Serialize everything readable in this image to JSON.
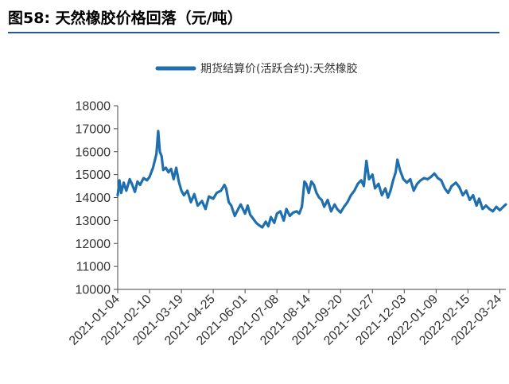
{
  "figure": {
    "title": "图58: 天然橡胶价格回落（元/吨）"
  },
  "colors": {
    "series": "#1f6fae",
    "title_rule": "#1f5a96",
    "axis": "#444444"
  },
  "chart_data": {
    "type": "line",
    "legend_position": "top-center",
    "grid": false,
    "ylim": [
      10000,
      18000
    ],
    "yticks": [
      "18000",
      "17000",
      "16000",
      "15000",
      "14000",
      "13000",
      "12000",
      "11000",
      "10000"
    ],
    "xrange": [
      "2021-01-04",
      "2022-03-31"
    ],
    "xticks": [
      "2021-01-04",
      "2021-02-10",
      "2021-03-19",
      "2021-04-25",
      "2021-06-01",
      "2021-07-08",
      "2021-08-14",
      "2021-09-20",
      "2021-10-27",
      "2021-12-03",
      "2022-01-09",
      "2022-02-15",
      "2022-03-24"
    ],
    "series": [
      {
        "name": "期货结算价(活跃合约):天然橡胶",
        "points": [
          [
            "2021-01-04",
            14100
          ],
          [
            "2021-01-06",
            14750
          ],
          [
            "2021-01-08",
            14200
          ],
          [
            "2021-01-11",
            14650
          ],
          [
            "2021-01-14",
            14300
          ],
          [
            "2021-01-18",
            14800
          ],
          [
            "2021-01-21",
            14550
          ],
          [
            "2021-01-24",
            14250
          ],
          [
            "2021-01-27",
            14700
          ],
          [
            "2021-01-30",
            14550
          ],
          [
            "2021-02-03",
            14850
          ],
          [
            "2021-02-07",
            14750
          ],
          [
            "2021-02-10",
            14900
          ],
          [
            "2021-02-14",
            15300
          ],
          [
            "2021-02-18",
            15900
          ],
          [
            "2021-02-20",
            16900
          ],
          [
            "2021-02-22",
            16000
          ],
          [
            "2021-02-24",
            15800
          ],
          [
            "2021-02-26",
            15200
          ],
          [
            "2021-03-01",
            15300
          ],
          [
            "2021-03-04",
            15100
          ],
          [
            "2021-03-07",
            15250
          ],
          [
            "2021-03-10",
            14800
          ],
          [
            "2021-03-13",
            15300
          ],
          [
            "2021-03-16",
            14700
          ],
          [
            "2021-03-19",
            14300
          ],
          [
            "2021-03-22",
            14100
          ],
          [
            "2021-03-26",
            14300
          ],
          [
            "2021-03-30",
            13800
          ],
          [
            "2021-04-03",
            14150
          ],
          [
            "2021-04-07",
            13650
          ],
          [
            "2021-04-12",
            13850
          ],
          [
            "2021-04-16",
            13500
          ],
          [
            "2021-04-20",
            14050
          ],
          [
            "2021-04-25",
            13950
          ],
          [
            "2021-04-29",
            14200
          ],
          [
            "2021-05-04",
            14300
          ],
          [
            "2021-05-08",
            14550
          ],
          [
            "2021-05-10",
            14400
          ],
          [
            "2021-05-13",
            13800
          ],
          [
            "2021-05-16",
            13650
          ],
          [
            "2021-05-20",
            13200
          ],
          [
            "2021-05-24",
            13500
          ],
          [
            "2021-05-27",
            13700
          ],
          [
            "2021-06-01",
            13300
          ],
          [
            "2021-06-04",
            13650
          ],
          [
            "2021-06-07",
            13250
          ],
          [
            "2021-06-10",
            13100
          ],
          [
            "2021-06-14",
            12900
          ],
          [
            "2021-06-17",
            12800
          ],
          [
            "2021-06-21",
            12700
          ],
          [
            "2021-06-25",
            12950
          ],
          [
            "2021-06-28",
            12750
          ],
          [
            "2021-07-01",
            13150
          ],
          [
            "2021-07-05",
            12900
          ],
          [
            "2021-07-08",
            13300
          ],
          [
            "2021-07-12",
            13400
          ],
          [
            "2021-07-16",
            13000
          ],
          [
            "2021-07-19",
            13500
          ],
          [
            "2021-07-23",
            13200
          ],
          [
            "2021-07-27",
            13350
          ],
          [
            "2021-07-31",
            13400
          ],
          [
            "2021-08-03",
            13300
          ],
          [
            "2021-08-06",
            13600
          ],
          [
            "2021-08-09",
            14700
          ],
          [
            "2021-08-11",
            14600
          ],
          [
            "2021-08-14",
            14200
          ],
          [
            "2021-08-17",
            14700
          ],
          [
            "2021-08-20",
            14550
          ],
          [
            "2021-08-23",
            14200
          ],
          [
            "2021-08-26",
            14000
          ],
          [
            "2021-08-29",
            13900
          ],
          [
            "2021-09-01",
            13600
          ],
          [
            "2021-09-05",
            13900
          ],
          [
            "2021-09-09",
            13400
          ],
          [
            "2021-09-13",
            13700
          ],
          [
            "2021-09-16",
            13500
          ],
          [
            "2021-09-20",
            13350
          ],
          [
            "2021-09-24",
            13600
          ],
          [
            "2021-09-28",
            13800
          ],
          [
            "2021-10-02",
            14100
          ],
          [
            "2021-10-06",
            14300
          ],
          [
            "2021-10-10",
            14600
          ],
          [
            "2021-10-14",
            14750
          ],
          [
            "2021-10-17",
            14500
          ],
          [
            "2021-10-20",
            15600
          ],
          [
            "2021-10-23",
            14800
          ],
          [
            "2021-10-27",
            15000
          ],
          [
            "2021-10-30",
            14400
          ],
          [
            "2021-11-03",
            14600
          ],
          [
            "2021-11-07",
            14100
          ],
          [
            "2021-11-11",
            14400
          ],
          [
            "2021-11-14",
            14000
          ],
          [
            "2021-11-17",
            14300
          ],
          [
            "2021-11-20",
            14750
          ],
          [
            "2021-11-23",
            15100
          ],
          [
            "2021-11-25",
            15650
          ],
          [
            "2021-11-28",
            15200
          ],
          [
            "2021-12-02",
            14800
          ],
          [
            "2021-12-06",
            14650
          ],
          [
            "2021-12-10",
            14800
          ],
          [
            "2021-12-14",
            14300
          ],
          [
            "2021-12-18",
            14600
          ],
          [
            "2021-12-22",
            14750
          ],
          [
            "2021-12-26",
            14850
          ],
          [
            "2021-12-30",
            14800
          ],
          [
            "2022-01-03",
            14900
          ],
          [
            "2022-01-07",
            15050
          ],
          [
            "2022-01-11",
            14850
          ],
          [
            "2022-01-15",
            14750
          ],
          [
            "2022-01-19",
            14400
          ],
          [
            "2022-01-23",
            14200
          ],
          [
            "2022-01-27",
            14500
          ],
          [
            "2022-02-01",
            14650
          ],
          [
            "2022-02-05",
            14450
          ],
          [
            "2022-02-09",
            14100
          ],
          [
            "2022-02-13",
            14300
          ],
          [
            "2022-02-17",
            13900
          ],
          [
            "2022-02-21",
            14100
          ],
          [
            "2022-02-25",
            13650
          ],
          [
            "2022-02-28",
            13950
          ],
          [
            "2022-03-04",
            13500
          ],
          [
            "2022-03-08",
            13650
          ],
          [
            "2022-03-12",
            13500
          ],
          [
            "2022-03-16",
            13400
          ],
          [
            "2022-03-20",
            13600
          ],
          [
            "2022-03-24",
            13450
          ],
          [
            "2022-03-28",
            13600
          ],
          [
            "2022-03-31",
            13700
          ]
        ]
      }
    ]
  }
}
